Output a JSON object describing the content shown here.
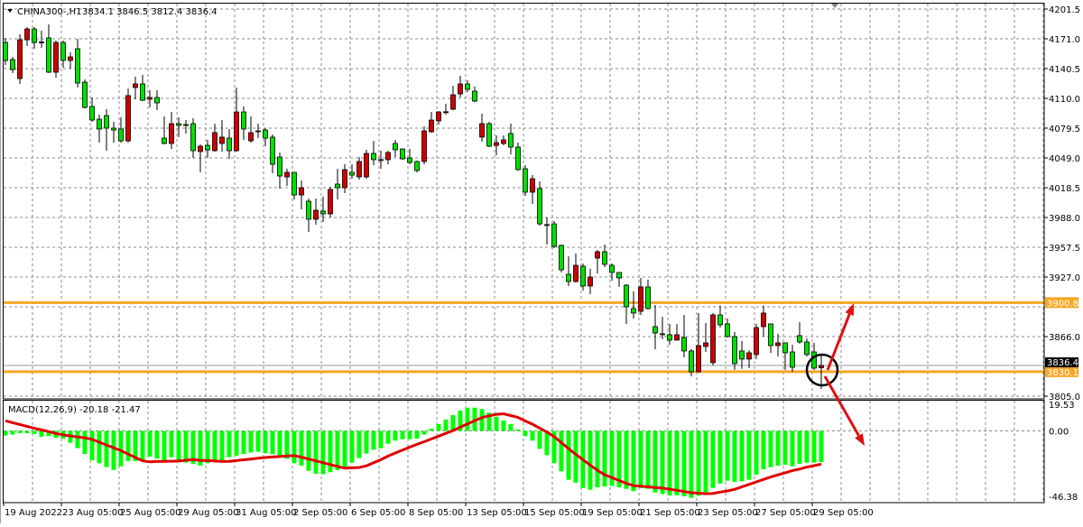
{
  "header": {
    "symbol": "CHINA300-,H1",
    "ohlc": "3834.1 3846.5 3812.4 3836.4"
  },
  "indicator": {
    "label": "MACD(12,26,9) -20.18 -21.47"
  },
  "colors": {
    "bull": "#d00000",
    "bear": "#00e000",
    "histogram": "#00ff00",
    "signal": "#e00000",
    "level_lines": "#f5a623",
    "annotation": "#e01010",
    "grid": "#8a8a8a"
  },
  "chart_data": [
    {
      "type": "candlestick",
      "title": "CHINA300-,H1",
      "ylim": [
        3805.0,
        4201.5
      ],
      "y_ticks": [
        "4201.5",
        "4171.0",
        "4140.5",
        "4110.0",
        "4079.5",
        "4049.0",
        "4018.5",
        "3988.0",
        "3957.5",
        "3927.0",
        "3866.0",
        "3805.0"
      ],
      "x_ticks": [
        "19 Aug 2022",
        "23 Aug 05:00",
        "25 Aug 05:00",
        "29 Aug 05:00",
        "31 Aug 05:00",
        "2 Sep 05:00",
        "6 Sep 05:00",
        "8 Sep 05:00",
        "13 Sep 05:00",
        "15 Sep 05:00",
        "19 Sep 05:00",
        "21 Sep 05:00",
        "23 Sep 05:00",
        "27 Sep 05:00",
        "29 Sep 05:00"
      ],
      "grid": true,
      "current_price": {
        "value": 3836.4,
        "label": "3836.4"
      },
      "horizontal_levels": [
        {
          "value": 3900.8,
          "label": "3900.8"
        },
        {
          "value": 3830.1,
          "label": "3830.1"
        }
      ],
      "annotations": [
        "circle around last candle",
        "arrow up toward 3900.8",
        "arrow down"
      ],
      "ohlc": [
        [
          4167.3,
          4171.9,
          4144.2,
          4148.8
        ],
        [
          4149.7,
          4152.5,
          4135.9,
          4139.5
        ],
        [
          4130.3,
          4175.6,
          4124.8,
          4170.0
        ],
        [
          4170.0,
          4183.0,
          4163.6,
          4181.1
        ],
        [
          4181.1,
          4183.0,
          4160.8,
          4167.3
        ],
        [
          4167.3,
          4179.3,
          4161.7,
          4167.8
        ],
        [
          4171.9,
          4185.8,
          4136.0,
          4136.8
        ],
        [
          4136.8,
          4169.1,
          4131.2,
          4167.3
        ],
        [
          4167.3,
          4169.1,
          4141.4,
          4148.8
        ],
        [
          4148.8,
          4157.1,
          4140.5,
          4152.5
        ],
        [
          4160.8,
          4171.0,
          4121.1,
          4125.7
        ],
        [
          4126.6,
          4129.4,
          4099.8,
          4100.7
        ],
        [
          4101.7,
          4110.9,
          4086.0,
          4087.8
        ],
        [
          4088.7,
          4093.4,
          4064.7,
          4078.6
        ],
        [
          4092.4,
          4098.9,
          4056.4,
          4079.5
        ],
        [
          4079.5,
          4086.0,
          4064.7,
          4077.6
        ],
        [
          4078.6,
          4090.6,
          4064.7,
          4066.5
        ],
        [
          4066.5,
          4120.1,
          4064.7,
          4112.8
        ],
        [
          4121.1,
          4132.2,
          4109.1,
          4124.8
        ],
        [
          4124.8,
          4134.0,
          4107.2,
          4108.1
        ],
        [
          4109.1,
          4118.3,
          4100.7,
          4110.9
        ],
        [
          4110.9,
          4118.3,
          4098.0,
          4105.4
        ],
        [
          4069.3,
          4091.5,
          4063.0,
          4063.8
        ],
        [
          4063.8,
          4096.1,
          4058.2,
          4084.1
        ],
        [
          4084.1,
          4090.6,
          4070.3,
          4082.3
        ],
        [
          4083.2,
          4087.8,
          4074.0,
          4083.0
        ],
        [
          4084.1,
          4089.7,
          4049.0,
          4056.4
        ],
        [
          4055.5,
          4062.9,
          4034.2,
          4061.0
        ],
        [
          4061.9,
          4067.5,
          4049.0,
          4057.3
        ],
        [
          4056.4,
          4084.1,
          4055.5,
          4074.9
        ],
        [
          4063.8,
          4087.8,
          4055.5,
          4070.3
        ],
        [
          4069.3,
          4078.6,
          4048.1,
          4056.4
        ],
        [
          4056.4,
          4121.1,
          4055.5,
          4096.1
        ],
        [
          4096.1,
          4101.7,
          4067.5,
          4078.6
        ],
        [
          4066.5,
          4091.5,
          4064.7,
          4074.9
        ],
        [
          4076.7,
          4084.1,
          4069.3,
          4076.5
        ],
        [
          4077.6,
          4079.5,
          4061.0,
          4069.3
        ],
        [
          4070.3,
          4073.0,
          4033.3,
          4042.5
        ],
        [
          4049.9,
          4054.5,
          4017.6,
          4030.5
        ],
        [
          4029.6,
          4037.9,
          4020.4,
          4034.2
        ],
        [
          4034.2,
          4034.5,
          4006.5,
          4011.1
        ],
        [
          4011.1,
          4025.9,
          3996.3,
          4018.5
        ],
        [
          4004.7,
          4007.4,
          3973.2,
          3986.2
        ],
        [
          3986.2,
          4007.4,
          3980.6,
          3995.4
        ],
        [
          3994.5,
          4009.3,
          3983.4,
          3991.7
        ],
        [
          3991.7,
          4019.4,
          3988.0,
          4016.7
        ],
        [
          4022.2,
          4037.9,
          4006.5,
          4018.5
        ],
        [
          4018.5,
          4042.5,
          4013.0,
          4037.0
        ],
        [
          4034.2,
          4042.5,
          4027.7,
          4031.4
        ],
        [
          4029.6,
          4049.9,
          4026.8,
          4045.3
        ],
        [
          4029.6,
          4057.3,
          4027.7,
          4053.6
        ],
        [
          4053.6,
          4066.5,
          4041.6,
          4047.2
        ],
        [
          4047.3,
          4056.4,
          4037.9,
          4047.1
        ],
        [
          4047.2,
          4056.4,
          4042.5,
          4054.5
        ],
        [
          4063.8,
          4067.5,
          4049.9,
          4057.3
        ],
        [
          4058.2,
          4058.5,
          4047.2,
          4048.1
        ],
        [
          4049.0,
          4058.2,
          4042.5,
          4044.4
        ],
        [
          4045.3,
          4046.2,
          4034.2,
          4036.1
        ],
        [
          4045.3,
          4081.3,
          4042.5,
          4076.7
        ],
        [
          4075.8,
          4096.1,
          4074.9,
          4087.8
        ],
        [
          4086.9,
          4097.0,
          4083.2,
          4096.1
        ],
        [
          4096.0,
          4104.4,
          4093.4,
          4096.3
        ],
        [
          4098.9,
          4122.9,
          4098.0,
          4113.7
        ],
        [
          4114.6,
          4133.1,
          4111.1,
          4124.8
        ],
        [
          4124.8,
          4128.5,
          4116.4,
          4119.2
        ],
        [
          4117.4,
          4122.0,
          4106.3,
          4107.2
        ],
        [
          4070.3,
          4094.3,
          4065.6,
          4084.1
        ],
        [
          4084.1,
          4086.0,
          4060.1,
          4061.0
        ],
        [
          4061.9,
          4072.1,
          4051.8,
          4064.7
        ],
        [
          4063.8,
          4072.1,
          4061.9,
          4067.5
        ],
        [
          4074.0,
          4084.1,
          4052.7,
          4060.1
        ],
        [
          4060.1,
          4064.7,
          4036.1,
          4037.0
        ],
        [
          4037.9,
          4041.6,
          4010.2,
          4013.9
        ],
        [
          4013.9,
          4031.4,
          4001.9,
          4027.7
        ],
        [
          4017.6,
          4025.0,
          3979.7,
          3981.5
        ],
        [
          3980.7,
          3988.0,
          3960.3,
          3980.5
        ],
        [
          3981.5,
          3984.3,
          3956.6,
          3958.4
        ],
        [
          3959.4,
          3960.3,
          3931.7,
          3934.4
        ],
        [
          3929.8,
          3948.3,
          3917.8,
          3922.4
        ],
        [
          3922.4,
          3951.1,
          3921.5,
          3939.0
        ],
        [
          3938.1,
          3940.9,
          3913.2,
          3917.8
        ],
        [
          3917.8,
          3935.4,
          3909.5,
          3927.0
        ],
        [
          3946.4,
          3954.7,
          3930.7,
          3952.9
        ],
        [
          3952.9,
          3960.3,
          3937.2,
          3940.0
        ],
        [
          3939.0,
          3940.9,
          3923.3,
          3931.7
        ],
        [
          3931.7,
          3932.0,
          3916.9,
          3926.1
        ],
        [
          3918.7,
          3919.6,
          3879.0,
          3896.5
        ],
        [
          3894.7,
          3912.2,
          3884.5,
          3890.1
        ],
        [
          3891.9,
          3926.1,
          3888.2,
          3916.9
        ],
        [
          3916.9,
          3924.3,
          3893.8,
          3894.7
        ],
        [
          3876.2,
          3898.4,
          3853.1,
          3869.7
        ],
        [
          3868.9,
          3886.4,
          3863.3,
          3868.7
        ],
        [
          3867.9,
          3879.0,
          3857.7,
          3862.4
        ],
        [
          3862.4,
          3879.0,
          3862.0,
          3867.9
        ],
        [
          3865.1,
          3888.2,
          3844.8,
          3851.3
        ],
        [
          3851.3,
          3853.1,
          3825.4,
          3830.0
        ],
        [
          3830.0,
          3890.1,
          3829.1,
          3856.8
        ],
        [
          3855.9,
          3879.9,
          3850.3,
          3859.6
        ],
        [
          3839.3,
          3890.1,
          3836.5,
          3888.2
        ],
        [
          3888.2,
          3897.8,
          3875.3,
          3878.1
        ],
        [
          3879.0,
          3884.5,
          3865.1,
          3866.0
        ],
        [
          3866.0,
          3870.7,
          3831.9,
          3838.3
        ],
        [
          3851.3,
          3861.4,
          3832.8,
          3843.0
        ],
        [
          3843.0,
          3852.2,
          3833.7,
          3849.4
        ],
        [
          3847.6,
          3879.0,
          3843.0,
          3875.3
        ],
        [
          3876.2,
          3897.8,
          3866.0,
          3890.1
        ],
        [
          3879.0,
          3879.2,
          3849.4,
          3856.8
        ],
        [
          3856.8,
          3868.8,
          3845.7,
          3859.6
        ],
        [
          3859.6,
          3859.8,
          3831.9,
          3849.4
        ],
        [
          3850.3,
          3857.7,
          3830.0,
          3834.6
        ],
        [
          3867.0,
          3880.8,
          3858.7,
          3860.5
        ],
        [
          3860.5,
          3864.2,
          3845.7,
          3847.6
        ],
        [
          3850.3,
          3859.6,
          3831.9,
          3833.7
        ],
        [
          3834.1,
          3846.5,
          3812.4,
          3836.4
        ]
      ]
    },
    {
      "type": "bar+line",
      "title": "MACD(12,26,9) -20.18 -21.47",
      "ylim": [
        -46.38,
        19.53
      ],
      "y_ticks": [
        "19.53",
        "0.00",
        "-46.38"
      ],
      "macd": [
        -3.0,
        -2.4,
        -1.5,
        -1.5,
        -2.0,
        -3.8,
        -3.4,
        -4.6,
        -5.0,
        -7.7,
        -11.2,
        -15.0,
        -19.0,
        -20.9,
        -23.4,
        -25.2,
        -22.9,
        -19.5,
        -19.5,
        -19.0,
        -16.6,
        -18.0,
        -19.0,
        -17.0,
        -19.4,
        -20.5,
        -21.3,
        -22.5,
        -20.9,
        -20.0,
        -19.0,
        -17.0,
        -16.0,
        -15.0,
        -14.0,
        -13.5,
        -14.5,
        -15.0,
        -17.0,
        -18.0,
        -20.9,
        -22.5,
        -25.8,
        -27.7,
        -28.0,
        -26.7,
        -25.4,
        -24.0,
        -20.5,
        -17.6,
        -14.7,
        -12.2,
        -11.2,
        -8.3,
        -6.3,
        -5.4,
        -5.4,
        -5.0,
        -2.4,
        1.5,
        4.4,
        7.3,
        10.2,
        13.1,
        15.0,
        15.0,
        14.1,
        11.8,
        9.2,
        6.7,
        4.4,
        1.0,
        -3.4,
        -6.3,
        -11.6,
        -15.7,
        -20.9,
        -26.2,
        -31.6,
        -33.5,
        -36.9,
        -38.0,
        -36.5,
        -36.0,
        -35.6,
        -36.5,
        -37.5,
        -39.0,
        -37.0,
        -37.5,
        -39.8,
        -40.8,
        -41.7,
        -41.7,
        -42.3,
        -43.3,
        -41.9,
        -39.8,
        -36.9,
        -34.1,
        -32.2,
        -33.0,
        -32.6,
        -31.6,
        -28.3,
        -24.8,
        -23.5,
        -22.5,
        -21.9,
        -22.9,
        -21.3,
        -20.5,
        -20.5,
        -20.18
      ],
      "signal": [
        6.5,
        5.3,
        4.1,
        2.9,
        1.7,
        0.6,
        -0.5,
        -1.7,
        -2.6,
        -3.3,
        -3.9,
        -4.5,
        -5.5,
        -7.3,
        -9.1,
        -10.9,
        -12.8,
        -15.0,
        -17.2,
        -19.4,
        -20.0,
        -19.8,
        -19.7,
        -19.6,
        -19.5,
        -19.0,
        -18.5,
        -19.1,
        -19.2,
        -19.5,
        -19.8,
        -19.7,
        -19.2,
        -18.7,
        -18.2,
        -17.7,
        -17.2,
        -16.9,
        -16.6,
        -16.2,
        -16.0,
        -17.0,
        -18.2,
        -19.4,
        -20.6,
        -21.8,
        -23.0,
        -24.1,
        -23.9,
        -23.7,
        -22.6,
        -20.6,
        -18.6,
        -16.3,
        -14.3,
        -12.4,
        -10.5,
        -8.7,
        -7.0,
        -5.2,
        -3.4,
        -1.6,
        0.2,
        2.4,
        4.5,
        6.6,
        8.6,
        9.7,
        10.7,
        11.0,
        9.9,
        8.7,
        6.4,
        4.3,
        1.8,
        -0.8,
        -3.7,
        -7.6,
        -11.5,
        -15.2,
        -18.6,
        -22.1,
        -25.5,
        -28.4,
        -30.2,
        -32.1,
        -33.9,
        -35.4,
        -35.8,
        -36.2,
        -36.6,
        -37.0,
        -37.7,
        -38.4,
        -39.2,
        -40.0,
        -40.3,
        -40.6,
        -40.5,
        -39.6,
        -38.8,
        -37.8,
        -36.2,
        -34.6,
        -33.0,
        -31.4,
        -29.8,
        -28.4,
        -27.1,
        -25.7,
        -24.7,
        -23.4,
        -22.5,
        -21.47
      ]
    }
  ]
}
